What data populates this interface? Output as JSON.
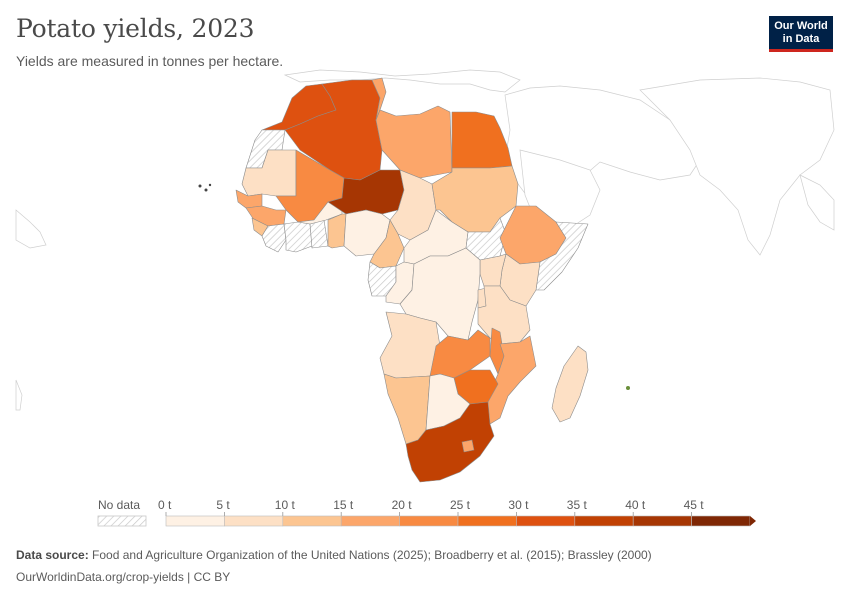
{
  "header": {
    "title": "Potato yields, 2023",
    "subtitle": "Yields are measured in tonnes per hectare.",
    "logo_line1": "Our World",
    "logo_line2": "in Data"
  },
  "legend": {
    "no_data_label": "No data",
    "ticks": [
      "0 t",
      "5 t",
      "10 t",
      "15 t",
      "20 t",
      "25 t",
      "30 t",
      "35 t",
      "40 t",
      "45 t"
    ],
    "colors": [
      "#fef1e4",
      "#fde0c5",
      "#fcc591",
      "#fca66a",
      "#f88a42",
      "#f0701f",
      "#de5110",
      "#c14103",
      "#a63603",
      "#7f2704"
    ]
  },
  "footer": {
    "source_label": "Data source:",
    "source_text": "Food and Agriculture Organization of the United Nations (2025); Broadberry et al. (2015); Brassley (2000)",
    "url_text": "OurWorldinData.org/crop-yields | CC BY"
  }
}
